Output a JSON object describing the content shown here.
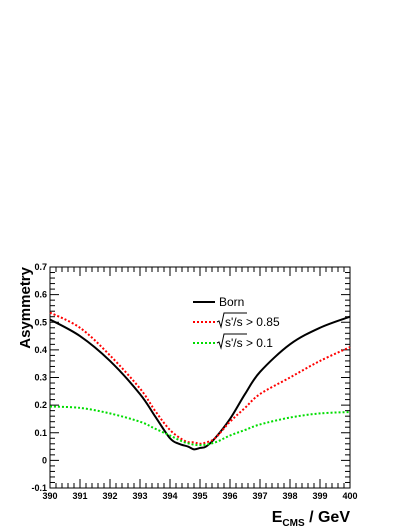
{
  "chart_data": {
    "type": "line",
    "title": "",
    "xlabel": "E_CMS / GeV",
    "xlabel_main": "E",
    "xlabel_sub": "CMS",
    "xlabel_unit": " / GeV",
    "ylabel": "Asymmetry",
    "xlim": [
      390,
      400
    ],
    "ylim": [
      -0.1,
      0.7
    ],
    "xticks": [
      "390",
      "391",
      "392",
      "393",
      "394",
      "395",
      "396",
      "397",
      "398",
      "399",
      "400"
    ],
    "yticks": [
      "-0.1",
      "0",
      "0.1",
      "0.2",
      "0.3",
      "0.4",
      "0.5",
      "0.6",
      "0.7"
    ],
    "grid": false,
    "legend_position": "top-center",
    "series": [
      {
        "name": "Born",
        "color": "#000000",
        "style": "solid",
        "x": [
          390,
          391,
          392,
          393,
          393.5,
          394,
          394.3,
          394.6,
          394.8,
          395,
          395.2,
          395.5,
          396,
          396.5,
          397,
          398,
          399,
          400
        ],
        "y": [
          0.51,
          0.45,
          0.36,
          0.24,
          0.16,
          0.08,
          0.06,
          0.05,
          0.04,
          0.045,
          0.05,
          0.08,
          0.15,
          0.24,
          0.32,
          0.42,
          0.48,
          0.52
        ]
      },
      {
        "name": "√s'/s > 0.85",
        "label_sqrt": "s'/s",
        "label_rest": " > 0.85",
        "color": "#ff0000",
        "style": "dotted",
        "x": [
          390,
          391,
          392,
          393,
          393.5,
          394,
          394.5,
          394.8,
          395,
          395.2,
          395.5,
          396,
          396.5,
          397,
          398,
          399,
          400
        ],
        "y": [
          0.535,
          0.48,
          0.38,
          0.26,
          0.18,
          0.11,
          0.07,
          0.065,
          0.06,
          0.065,
          0.08,
          0.14,
          0.19,
          0.24,
          0.3,
          0.36,
          0.41
        ]
      },
      {
        "name": "√s'/s > 0.1",
        "label_sqrt": "s'/s",
        "label_rest": " > 0.1",
        "color": "#00dd00",
        "style": "dotted",
        "x": [
          390,
          391,
          392,
          393,
          393.5,
          394,
          394.5,
          395,
          395.5,
          396,
          396.5,
          397,
          398,
          399,
          400
        ],
        "y": [
          0.195,
          0.19,
          0.17,
          0.14,
          0.115,
          0.09,
          0.065,
          0.055,
          0.065,
          0.09,
          0.11,
          0.13,
          0.155,
          0.17,
          0.175
        ]
      }
    ]
  }
}
